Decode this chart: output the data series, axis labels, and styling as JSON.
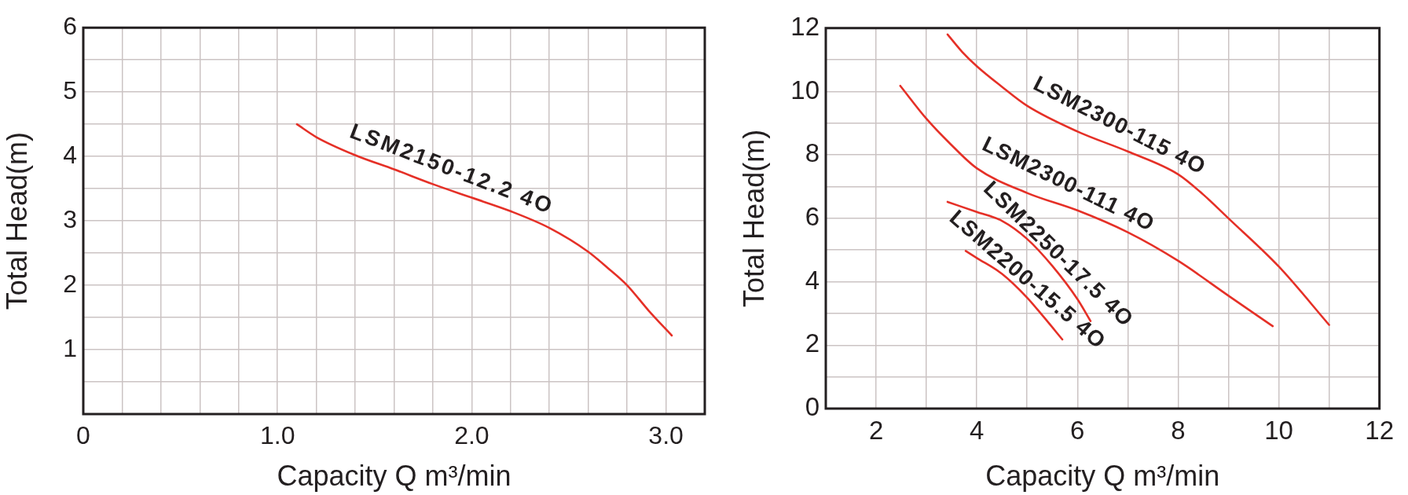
{
  "chart_data": [
    {
      "type": "line",
      "xlabel": "Capacity Q m³/min",
      "ylabel": "Total Head(m)",
      "xlim": [
        0,
        3.2
      ],
      "ylim": [
        0,
        6
      ],
      "grid": true,
      "xticks": [
        0,
        {
          "value": 0.2,
          "label": null
        },
        {
          "value": 0.4,
          "label": null
        },
        {
          "value": 0.6,
          "label": null
        },
        {
          "value": 0.8,
          "label": null
        },
        {
          "value": 1,
          "label": "1.0"
        },
        {
          "value": 1.2,
          "label": null
        },
        {
          "value": 1.4,
          "label": null
        },
        {
          "value": 1.6,
          "label": null
        },
        {
          "value": 1.8,
          "label": null
        },
        {
          "value": 2,
          "label": "2.0"
        },
        {
          "value": 2.2,
          "label": null
        },
        {
          "value": 2.4,
          "label": null
        },
        {
          "value": 2.6,
          "label": null
        },
        {
          "value": 2.8,
          "label": null
        },
        {
          "value": 3,
          "label": "3.0"
        }
      ],
      "yticks": [
        {
          "value": 0.5,
          "label": null
        },
        1,
        {
          "value": 1.5,
          "label": null
        },
        2,
        {
          "value": 2.5,
          "label": null
        },
        3,
        {
          "value": 3.5,
          "label": null
        },
        4,
        {
          "value": 4.5,
          "label": null
        },
        5,
        {
          "value": 5.5,
          "label": null
        },
        6
      ],
      "series": [
        {
          "name": "LSM2150-12.2 4O",
          "color": "#e53027",
          "x": [
            1.1,
            1.2,
            1.4,
            1.6,
            1.8,
            2.0,
            2.2,
            2.4,
            2.6,
            2.7,
            2.8,
            2.91,
            3.03
          ],
          "values": [
            4.5,
            4.3,
            4.02,
            3.8,
            3.57,
            3.36,
            3.15,
            2.89,
            2.52,
            2.27,
            2.0,
            1.61,
            1.22
          ]
        }
      ]
    },
    {
      "type": "line",
      "xlabel": "Capacity Q m³/min",
      "ylabel": "Total Head(m)",
      "xlim": [
        1,
        12
      ],
      "ylim": [
        0,
        12
      ],
      "grid": true,
      "xticks": [
        2,
        {
          "value": 3,
          "label": null
        },
        4,
        {
          "value": 5,
          "label": null
        },
        6,
        {
          "value": 7,
          "label": null
        },
        8,
        {
          "value": 9,
          "label": null
        },
        10,
        {
          "value": 11,
          "label": null
        },
        12
      ],
      "yticks": [
        0,
        {
          "value": 1,
          "label": null
        },
        2,
        {
          "value": 3,
          "label": null
        },
        4,
        {
          "value": 5,
          "label": null
        },
        6,
        {
          "value": 7,
          "label": null
        },
        8,
        {
          "value": 9,
          "label": null
        },
        10,
        {
          "value": 11,
          "label": null
        },
        12
      ],
      "series": [
        {
          "name": "LSM2300-115 4O",
          "color": "#e53027",
          "x": [
            3.42,
            3.71,
            4,
            4.5,
            5,
            6,
            7,
            8,
            8.5,
            9,
            10,
            11
          ],
          "values": [
            11.8,
            11.25,
            10.8,
            10.15,
            9.55,
            8.74,
            8.11,
            7.39,
            6.75,
            6.0,
            4.48,
            2.64
          ]
        },
        {
          "name": "LSM2300-111 4O",
          "color": "#e53027",
          "x": [
            2.48,
            3,
            3.48,
            4,
            5,
            6,
            7,
            8,
            9,
            9.88
          ],
          "values": [
            10.18,
            9.14,
            8.34,
            7.58,
            6.8,
            6.25,
            5.56,
            4.66,
            3.56,
            2.6
          ]
        },
        {
          "name": "LSM2250-17.5 4O",
          "color": "#e53027",
          "x": [
            3.42,
            4,
            4.5,
            5,
            5.5,
            6,
            6.26
          ],
          "values": [
            6.52,
            6.2,
            5.92,
            5.35,
            4.5,
            3.45,
            2.76
          ]
        },
        {
          "name": "LSM2200-15.5 4O",
          "color": "#e53027",
          "x": [
            3.78,
            4,
            4.5,
            5,
            5.34,
            5.7
          ],
          "values": [
            4.97,
            4.75,
            4.25,
            3.5,
            2.87,
            2.18
          ]
        }
      ]
    }
  ]
}
